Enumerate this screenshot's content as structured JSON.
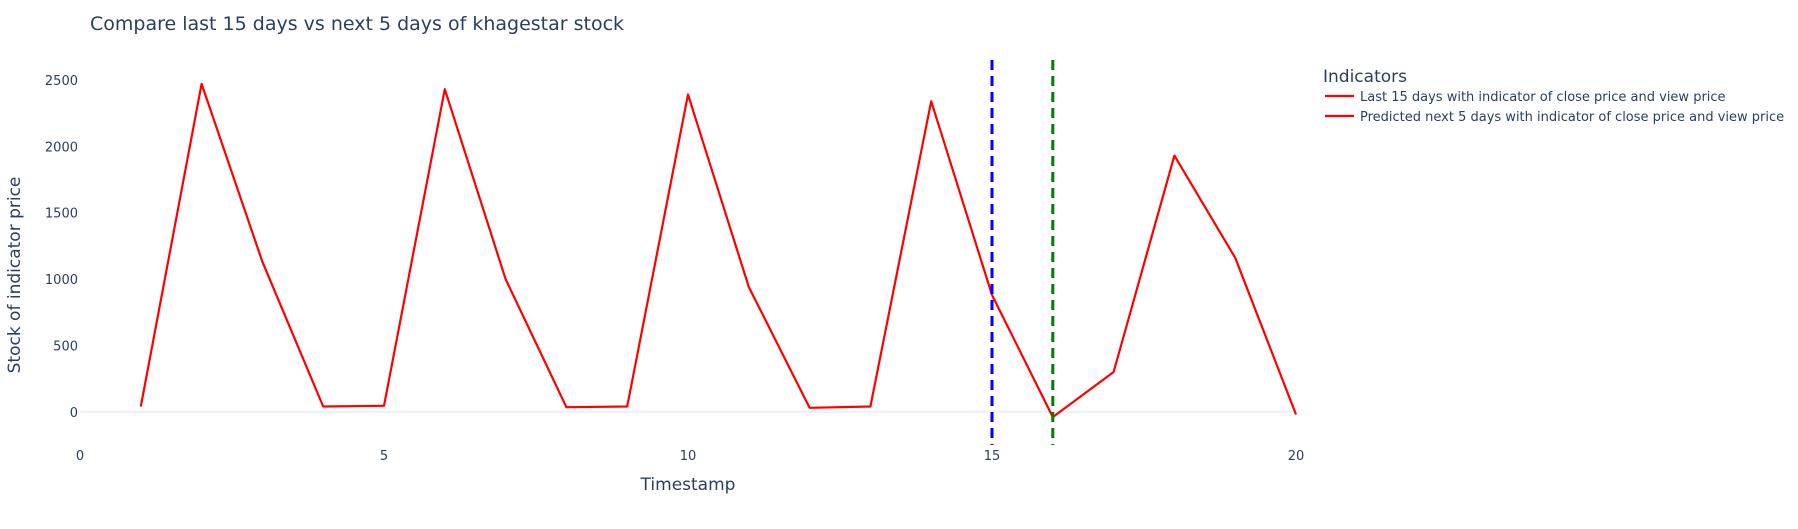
{
  "chart_data": {
    "type": "line",
    "title": "Compare last 15 days vs next 5 days of khagestar stock",
    "xlabel": "Timestamp",
    "ylabel": "Stock of indicator price",
    "xlim": [
      0,
      20
    ],
    "ylim": [
      -250,
      2650
    ],
    "x_ticks": [
      0,
      5,
      10,
      15,
      20
    ],
    "y_ticks": [
      0,
      500,
      1000,
      1500,
      2000,
      2500
    ],
    "grid": false,
    "legend": {
      "title": "Indicators",
      "placement": "top-right-outside"
    },
    "series": [
      {
        "name": "Last 15 days with indicator of close price and view price",
        "color": "#ff0000",
        "x": [
          1,
          2,
          3,
          4,
          5,
          6,
          7,
          8,
          9,
          10,
          11,
          12,
          13,
          14,
          15
        ],
        "values": [
          40,
          2470,
          1130,
          40,
          45,
          2430,
          1000,
          35,
          40,
          2390,
          940,
          30,
          40,
          2340,
          880
        ]
      },
      {
        "name": "Predicted next 5 days with indicator of close price and view price",
        "color": "#ff0000",
        "x": [
          15,
          16,
          17,
          18,
          19,
          20
        ],
        "values": [
          880,
          -40,
          300,
          1930,
          1160,
          -20
        ]
      }
    ],
    "vertical_lines": [
      {
        "x": 15,
        "color": "#0000ff",
        "style": "dash"
      },
      {
        "x": 16,
        "color": "#008000",
        "style": "dash"
      }
    ]
  }
}
